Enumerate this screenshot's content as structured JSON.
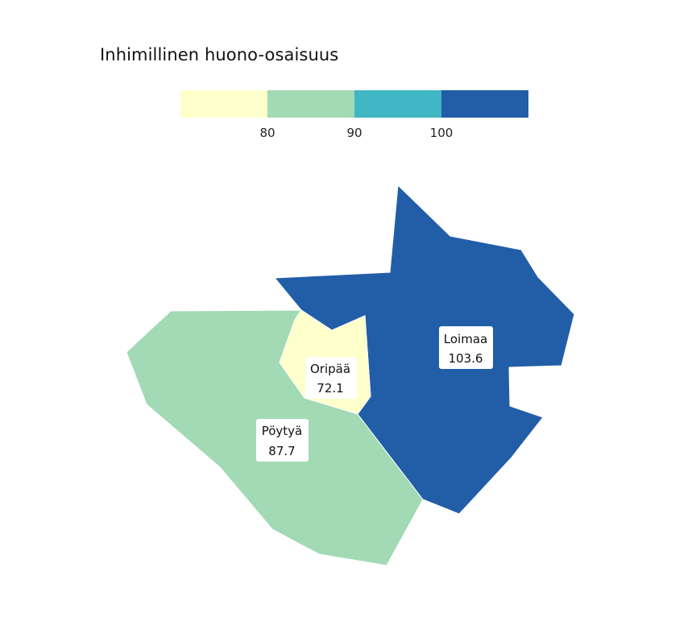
{
  "title": "Inhimillinen huono-osaisuus",
  "legend": {
    "colors": [
      "#ffffcc",
      "#a1dab4",
      "#41b6c4",
      "#225ea8"
    ],
    "ticks": [
      "80",
      "90",
      "100"
    ]
  },
  "regions": [
    {
      "name": "Pöytyä",
      "value": "87.7",
      "color": "#a1dab4"
    },
    {
      "name": "Loimaa",
      "value": "103.6",
      "color": "#225ea8"
    },
    {
      "name": "Oripää",
      "value": "72.1",
      "color": "#ffffcc"
    }
  ]
}
